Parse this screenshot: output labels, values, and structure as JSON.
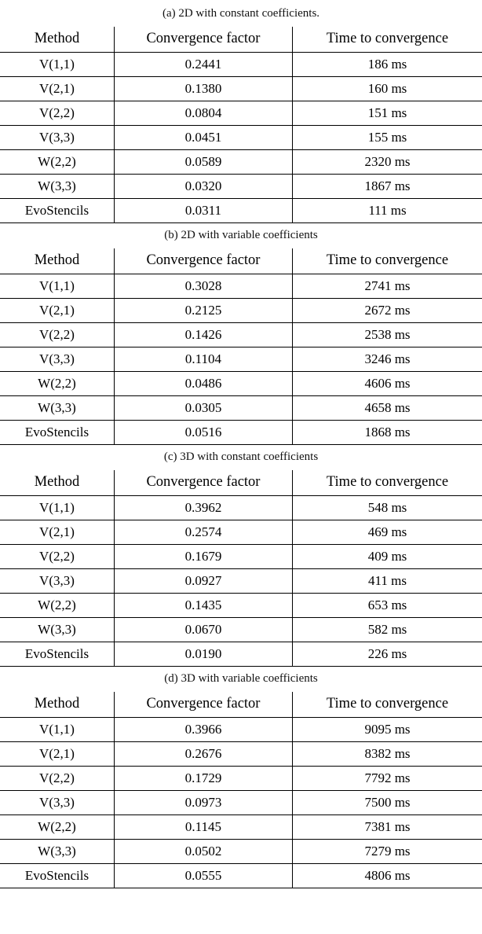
{
  "tables": [
    {
      "caption": "(a) 2D with constant coefficients.",
      "headers": [
        "Method",
        "Convergence factor",
        "Time to convergence"
      ],
      "rows": [
        {
          "cells": [
            {
              "text": "V(1,1)",
              "bold": false
            },
            {
              "text": "0.2441",
              "bold": false
            },
            {
              "text": "186 ms",
              "bold": false
            }
          ]
        },
        {
          "cells": [
            {
              "text": "V(2,1)",
              "bold": false
            },
            {
              "text": "0.1380",
              "bold": false
            },
            {
              "text": "160 ms",
              "bold": false
            }
          ]
        },
        {
          "cells": [
            {
              "text": "V(2,2)",
              "bold": false
            },
            {
              "text": "0.0804",
              "bold": false
            },
            {
              "text": "151 ms",
              "bold": false
            }
          ]
        },
        {
          "cells": [
            {
              "text": "V(3,3)",
              "bold": false
            },
            {
              "text": "0.0451",
              "bold": false
            },
            {
              "text": "155 ms",
              "bold": false
            }
          ]
        },
        {
          "cells": [
            {
              "text": "W(2,2)",
              "bold": false
            },
            {
              "text": "0.0589",
              "bold": false
            },
            {
              "text": "2320 ms",
              "bold": false
            }
          ]
        },
        {
          "cells": [
            {
              "text": "W(3,3)",
              "bold": false
            },
            {
              "text": "0.0320",
              "bold": false
            },
            {
              "text": "1867 ms",
              "bold": false
            }
          ]
        },
        {
          "cells": [
            {
              "text": "EvoStencils",
              "bold": false
            },
            {
              "text": "0.0311",
              "bold": true
            },
            {
              "text": "111 ms",
              "bold": true
            }
          ]
        }
      ]
    },
    {
      "caption": "(b) 2D with variable coefficients",
      "headers": [
        "Method",
        "Convergence factor",
        "Time to convergence"
      ],
      "rows": [
        {
          "cells": [
            {
              "text": "V(1,1)",
              "bold": false
            },
            {
              "text": "0.3028",
              "bold": false
            },
            {
              "text": "2741 ms",
              "bold": false
            }
          ]
        },
        {
          "cells": [
            {
              "text": "V(2,1)",
              "bold": false
            },
            {
              "text": "0.2125",
              "bold": false
            },
            {
              "text": "2672 ms",
              "bold": false
            }
          ]
        },
        {
          "cells": [
            {
              "text": "V(2,2)",
              "bold": false
            },
            {
              "text": "0.1426",
              "bold": false
            },
            {
              "text": "2538 ms",
              "bold": false
            }
          ]
        },
        {
          "cells": [
            {
              "text": "V(3,3)",
              "bold": false
            },
            {
              "text": "0.1104",
              "bold": false
            },
            {
              "text": "3246 ms",
              "bold": false
            }
          ]
        },
        {
          "cells": [
            {
              "text": "W(2,2)",
              "bold": false
            },
            {
              "text": "0.0486",
              "bold": false
            },
            {
              "text": "4606 ms",
              "bold": false
            }
          ]
        },
        {
          "cells": [
            {
              "text": "W(3,3)",
              "bold": false
            },
            {
              "text": "0.0305",
              "bold": true
            },
            {
              "text": "4658 ms",
              "bold": false
            }
          ]
        },
        {
          "cells": [
            {
              "text": "EvoStencils",
              "bold": false
            },
            {
              "text": "0.0516",
              "bold": false
            },
            {
              "text": "1868 ms",
              "bold": true
            }
          ]
        }
      ]
    },
    {
      "caption": "(c) 3D with constant coefficients",
      "headers": [
        "Method",
        "Convergence factor",
        "Time to convergence"
      ],
      "rows": [
        {
          "cells": [
            {
              "text": "V(1,1)",
              "bold": false
            },
            {
              "text": "0.3962",
              "bold": false
            },
            {
              "text": "548 ms",
              "bold": false
            }
          ]
        },
        {
          "cells": [
            {
              "text": "V(2,1)",
              "bold": false
            },
            {
              "text": "0.2574",
              "bold": false
            },
            {
              "text": "469 ms",
              "bold": false
            }
          ]
        },
        {
          "cells": [
            {
              "text": "V(2,2)",
              "bold": false
            },
            {
              "text": "0.1679",
              "bold": false
            },
            {
              "text": "409 ms",
              "bold": false
            }
          ]
        },
        {
          "cells": [
            {
              "text": "V(3,3)",
              "bold": false
            },
            {
              "text": "0.0927",
              "bold": false
            },
            {
              "text": "411 ms",
              "bold": false
            }
          ]
        },
        {
          "cells": [
            {
              "text": "W(2,2)",
              "bold": false
            },
            {
              "text": "0.1435",
              "bold": false
            },
            {
              "text": "653 ms",
              "bold": false
            }
          ]
        },
        {
          "cells": [
            {
              "text": "W(3,3)",
              "bold": false
            },
            {
              "text": "0.0670",
              "bold": false
            },
            {
              "text": "582 ms",
              "bold": false
            }
          ]
        },
        {
          "cells": [
            {
              "text": "EvoStencils",
              "bold": false
            },
            {
              "text": "0.0190",
              "bold": true
            },
            {
              "text": "226 ms",
              "bold": true
            }
          ]
        }
      ]
    },
    {
      "caption": "(d) 3D with variable coefficients",
      "headers": [
        "Method",
        "Convergence factor",
        "Time to convergence"
      ],
      "rows": [
        {
          "cells": [
            {
              "text": "V(1,1)",
              "bold": false
            },
            {
              "text": "0.3966",
              "bold": false
            },
            {
              "text": "9095 ms",
              "bold": false
            }
          ]
        },
        {
          "cells": [
            {
              "text": "V(2,1)",
              "bold": false
            },
            {
              "text": "0.2676",
              "bold": false
            },
            {
              "text": "8382 ms",
              "bold": false
            }
          ]
        },
        {
          "cells": [
            {
              "text": "V(2,2)",
              "bold": false
            },
            {
              "text": "0.1729",
              "bold": false
            },
            {
              "text": "7792 ms",
              "bold": false
            }
          ]
        },
        {
          "cells": [
            {
              "text": "V(3,3)",
              "bold": false
            },
            {
              "text": "0.0973",
              "bold": false
            },
            {
              "text": "7500 ms",
              "bold": false
            }
          ]
        },
        {
          "cells": [
            {
              "text": "W(2,2)",
              "bold": false
            },
            {
              "text": "0.1145",
              "bold": false
            },
            {
              "text": "7381 ms",
              "bold": false
            }
          ]
        },
        {
          "cells": [
            {
              "text": "W(3,3)",
              "bold": false
            },
            {
              "text": "0.0502",
              "bold": true
            },
            {
              "text": "7279 ms",
              "bold": false
            }
          ]
        },
        {
          "cells": [
            {
              "text": "EvoStencils",
              "bold": false
            },
            {
              "text": "0.0555",
              "bold": false
            },
            {
              "text": "4806 ms",
              "bold": true
            }
          ]
        }
      ]
    }
  ]
}
